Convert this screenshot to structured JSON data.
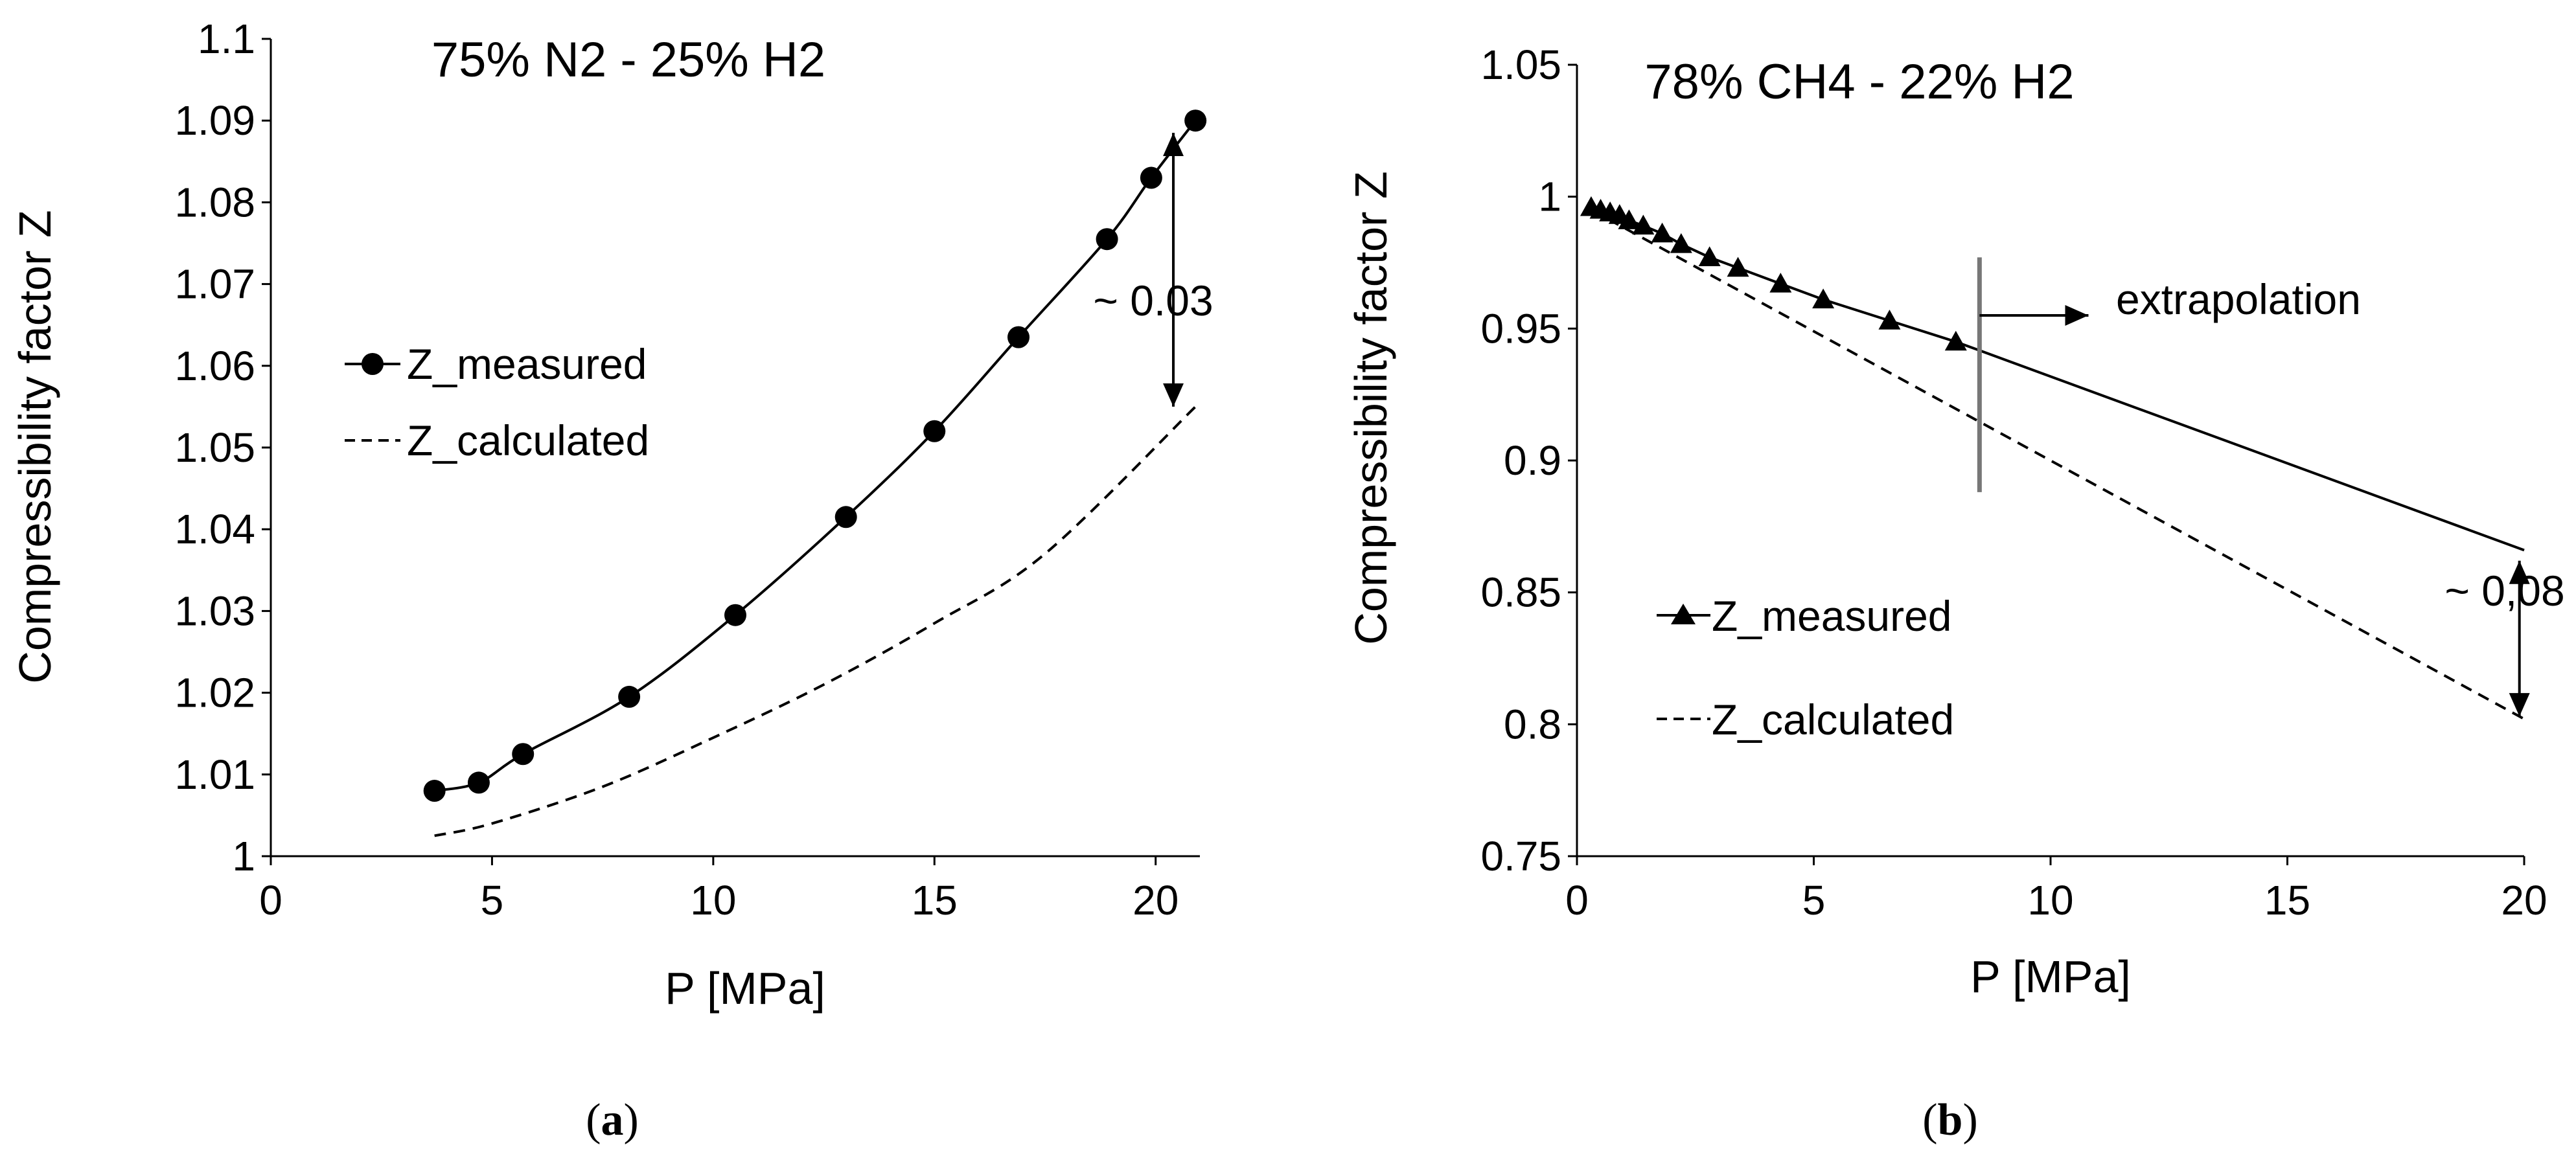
{
  "colors": {
    "ink": "#000000",
    "background": "#ffffff",
    "divider": "#999999"
  },
  "chart_data": [
    {
      "panel": "a",
      "type": "line",
      "title": "75% N2 - 25% H2",
      "xlabel": "P [MPa]",
      "ylabel": "Compressibility factor Z",
      "caption": "(a)",
      "caption_letter": "a",
      "xlim": [
        0,
        21
      ],
      "ylim": [
        1,
        1.1
      ],
      "x_ticks": [
        0,
        5,
        10,
        15,
        20
      ],
      "x_tick_labels": [
        "0",
        "5",
        "10",
        "15",
        "20"
      ],
      "y_ticks": [
        1,
        1.01,
        1.02,
        1.03,
        1.04,
        1.05,
        1.06,
        1.07,
        1.08,
        1.09,
        1.1
      ],
      "y_tick_labels": [
        "1",
        "1.01",
        "1.02",
        "1.03",
        "1.04",
        "1.05",
        "1.06",
        "1.07",
        "1.08",
        "1.09",
        "1.1"
      ],
      "grid": false,
      "legend_position": "left-middle",
      "series": [
        {
          "name": "Z_measured",
          "style": "solid",
          "marker": "circle",
          "x": [
            3.7,
            4.7,
            5.7,
            8.1,
            10.5,
            13.0,
            15.0,
            16.9,
            18.9,
            19.9,
            20.9
          ],
          "y": [
            1.008,
            1.009,
            1.0125,
            1.0195,
            1.0295,
            1.0415,
            1.052,
            1.0635,
            1.0755,
            1.083,
            1.09
          ]
        },
        {
          "name": "Z_calculated",
          "style": "dashed",
          "marker": "none",
          "x": [
            3.7,
            5,
            7.5,
            10,
            12.5,
            15,
            17.5,
            20.9
          ],
          "y": [
            1.0025,
            1.004,
            1.0085,
            1.0145,
            1.021,
            1.0285,
            1.037,
            1.055
          ]
        }
      ],
      "annotations": [
        {
          "text": "~ 0.03",
          "kind": "double-arrow",
          "x": 20.4,
          "y_from": 1.055,
          "y_to": 1.0885
        }
      ]
    },
    {
      "panel": "b",
      "type": "line",
      "title": "78% CH4 - 22% H2",
      "xlabel": "P [MPa]",
      "ylabel": "Compressibility factor Z",
      "caption": "(b)",
      "caption_letter": "b",
      "xlim": [
        0,
        20
      ],
      "ylim": [
        0.75,
        1.05
      ],
      "x_ticks": [
        0,
        5,
        10,
        15,
        20
      ],
      "x_tick_labels": [
        "0",
        "5",
        "10",
        "15",
        "20"
      ],
      "y_ticks": [
        0.75,
        0.8,
        0.85,
        0.9,
        0.95,
        1,
        1.05
      ],
      "y_tick_labels": [
        "0.75",
        "0.8",
        "0.85",
        "0.9",
        "0.95",
        "1",
        "1.05"
      ],
      "grid": false,
      "legend_position": "bottom-left",
      "series": [
        {
          "name": "Z_measured",
          "style": "solid",
          "marker": "triangle",
          "x": [
            0.3,
            0.5,
            0.7,
            0.9,
            1.1,
            1.4,
            1.8,
            2.2,
            2.8,
            3.4,
            4.3,
            5.2,
            6.6,
            8.0
          ],
          "y": [
            0.996,
            0.995,
            0.994,
            0.993,
            0.991,
            0.989,
            0.986,
            0.982,
            0.977,
            0.973,
            0.967,
            0.961,
            0.953,
            0.945
          ]
        },
        {
          "name": "Z_measured (extrapolated)",
          "style": "solid",
          "marker": "none",
          "x": [
            8.0,
            20.0
          ],
          "y": [
            0.945,
            0.866
          ]
        },
        {
          "name": "Z_calculated",
          "style": "dashed",
          "marker": "none",
          "x": [
            0.3,
            20.0
          ],
          "y": [
            0.995,
            0.802
          ]
        }
      ],
      "annotations": [
        {
          "text": "extrapolation",
          "kind": "vertical-marker-with-arrow",
          "x": 8.5,
          "y_from": 0.888,
          "y_to": 0.977,
          "arrow_to_x": 10.8,
          "arrow_y": 0.955
        },
        {
          "text": "~ 0,08",
          "kind": "double-arrow",
          "x": 19.9,
          "y_from": 0.803,
          "y_to": 0.862
        }
      ]
    }
  ]
}
